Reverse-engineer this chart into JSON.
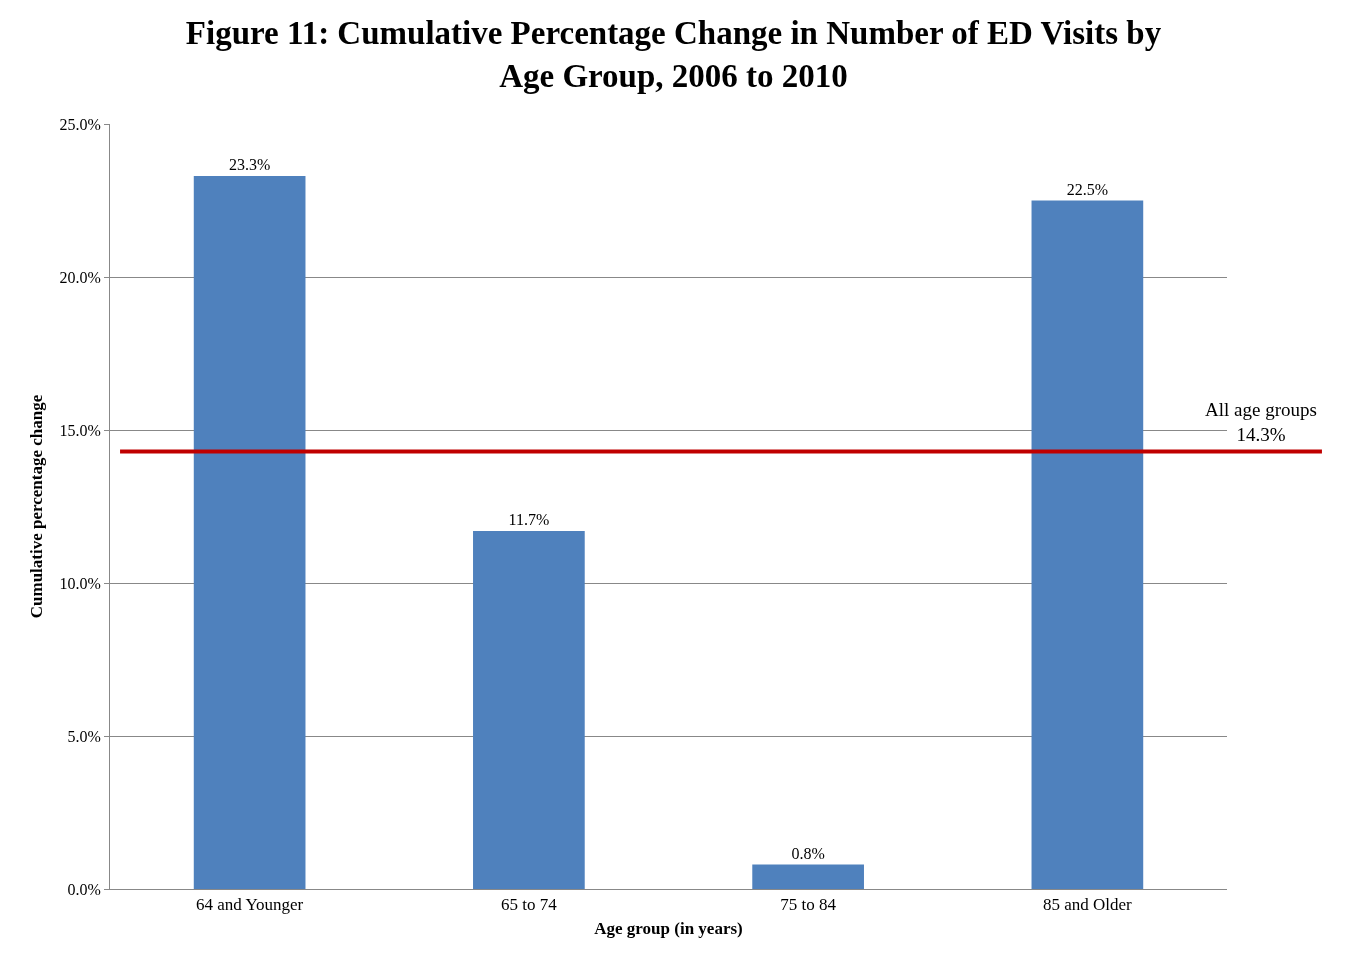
{
  "chart_data": {
    "type": "bar",
    "title": "Figure 11: Cumulative Percentage Change in Number of ED Visits by\nAge Group, 2006 to 2010",
    "xlabel": "Age group (in years)",
    "ylabel": "Cumulative percentage change",
    "categories": [
      "64 and Younger",
      "65 to 74",
      "75 to 84",
      "85 and Older"
    ],
    "values": [
      23.3,
      11.7,
      0.8,
      22.5
    ],
    "value_labels": [
      "23.3%",
      "11.7%",
      "0.8%",
      "22.5%"
    ],
    "color": "#4f81bd",
    "ylim": [
      0,
      25
    ],
    "yticks": [
      {
        "value": 0,
        "label": "0.0%"
      },
      {
        "value": 5,
        "label": "5.0%"
      },
      {
        "value": 10,
        "label": "10.0%"
      },
      {
        "value": 15,
        "label": "15.0%"
      },
      {
        "value": 20,
        "label": "20.0%"
      },
      {
        "value": 25,
        "label": "25.0%"
      }
    ],
    "grid": "y",
    "ref_lines": [
      {
        "axis": "y",
        "value": 14.3,
        "label": "All age groups\n14.3%",
        "color": "#c00000"
      }
    ]
  }
}
